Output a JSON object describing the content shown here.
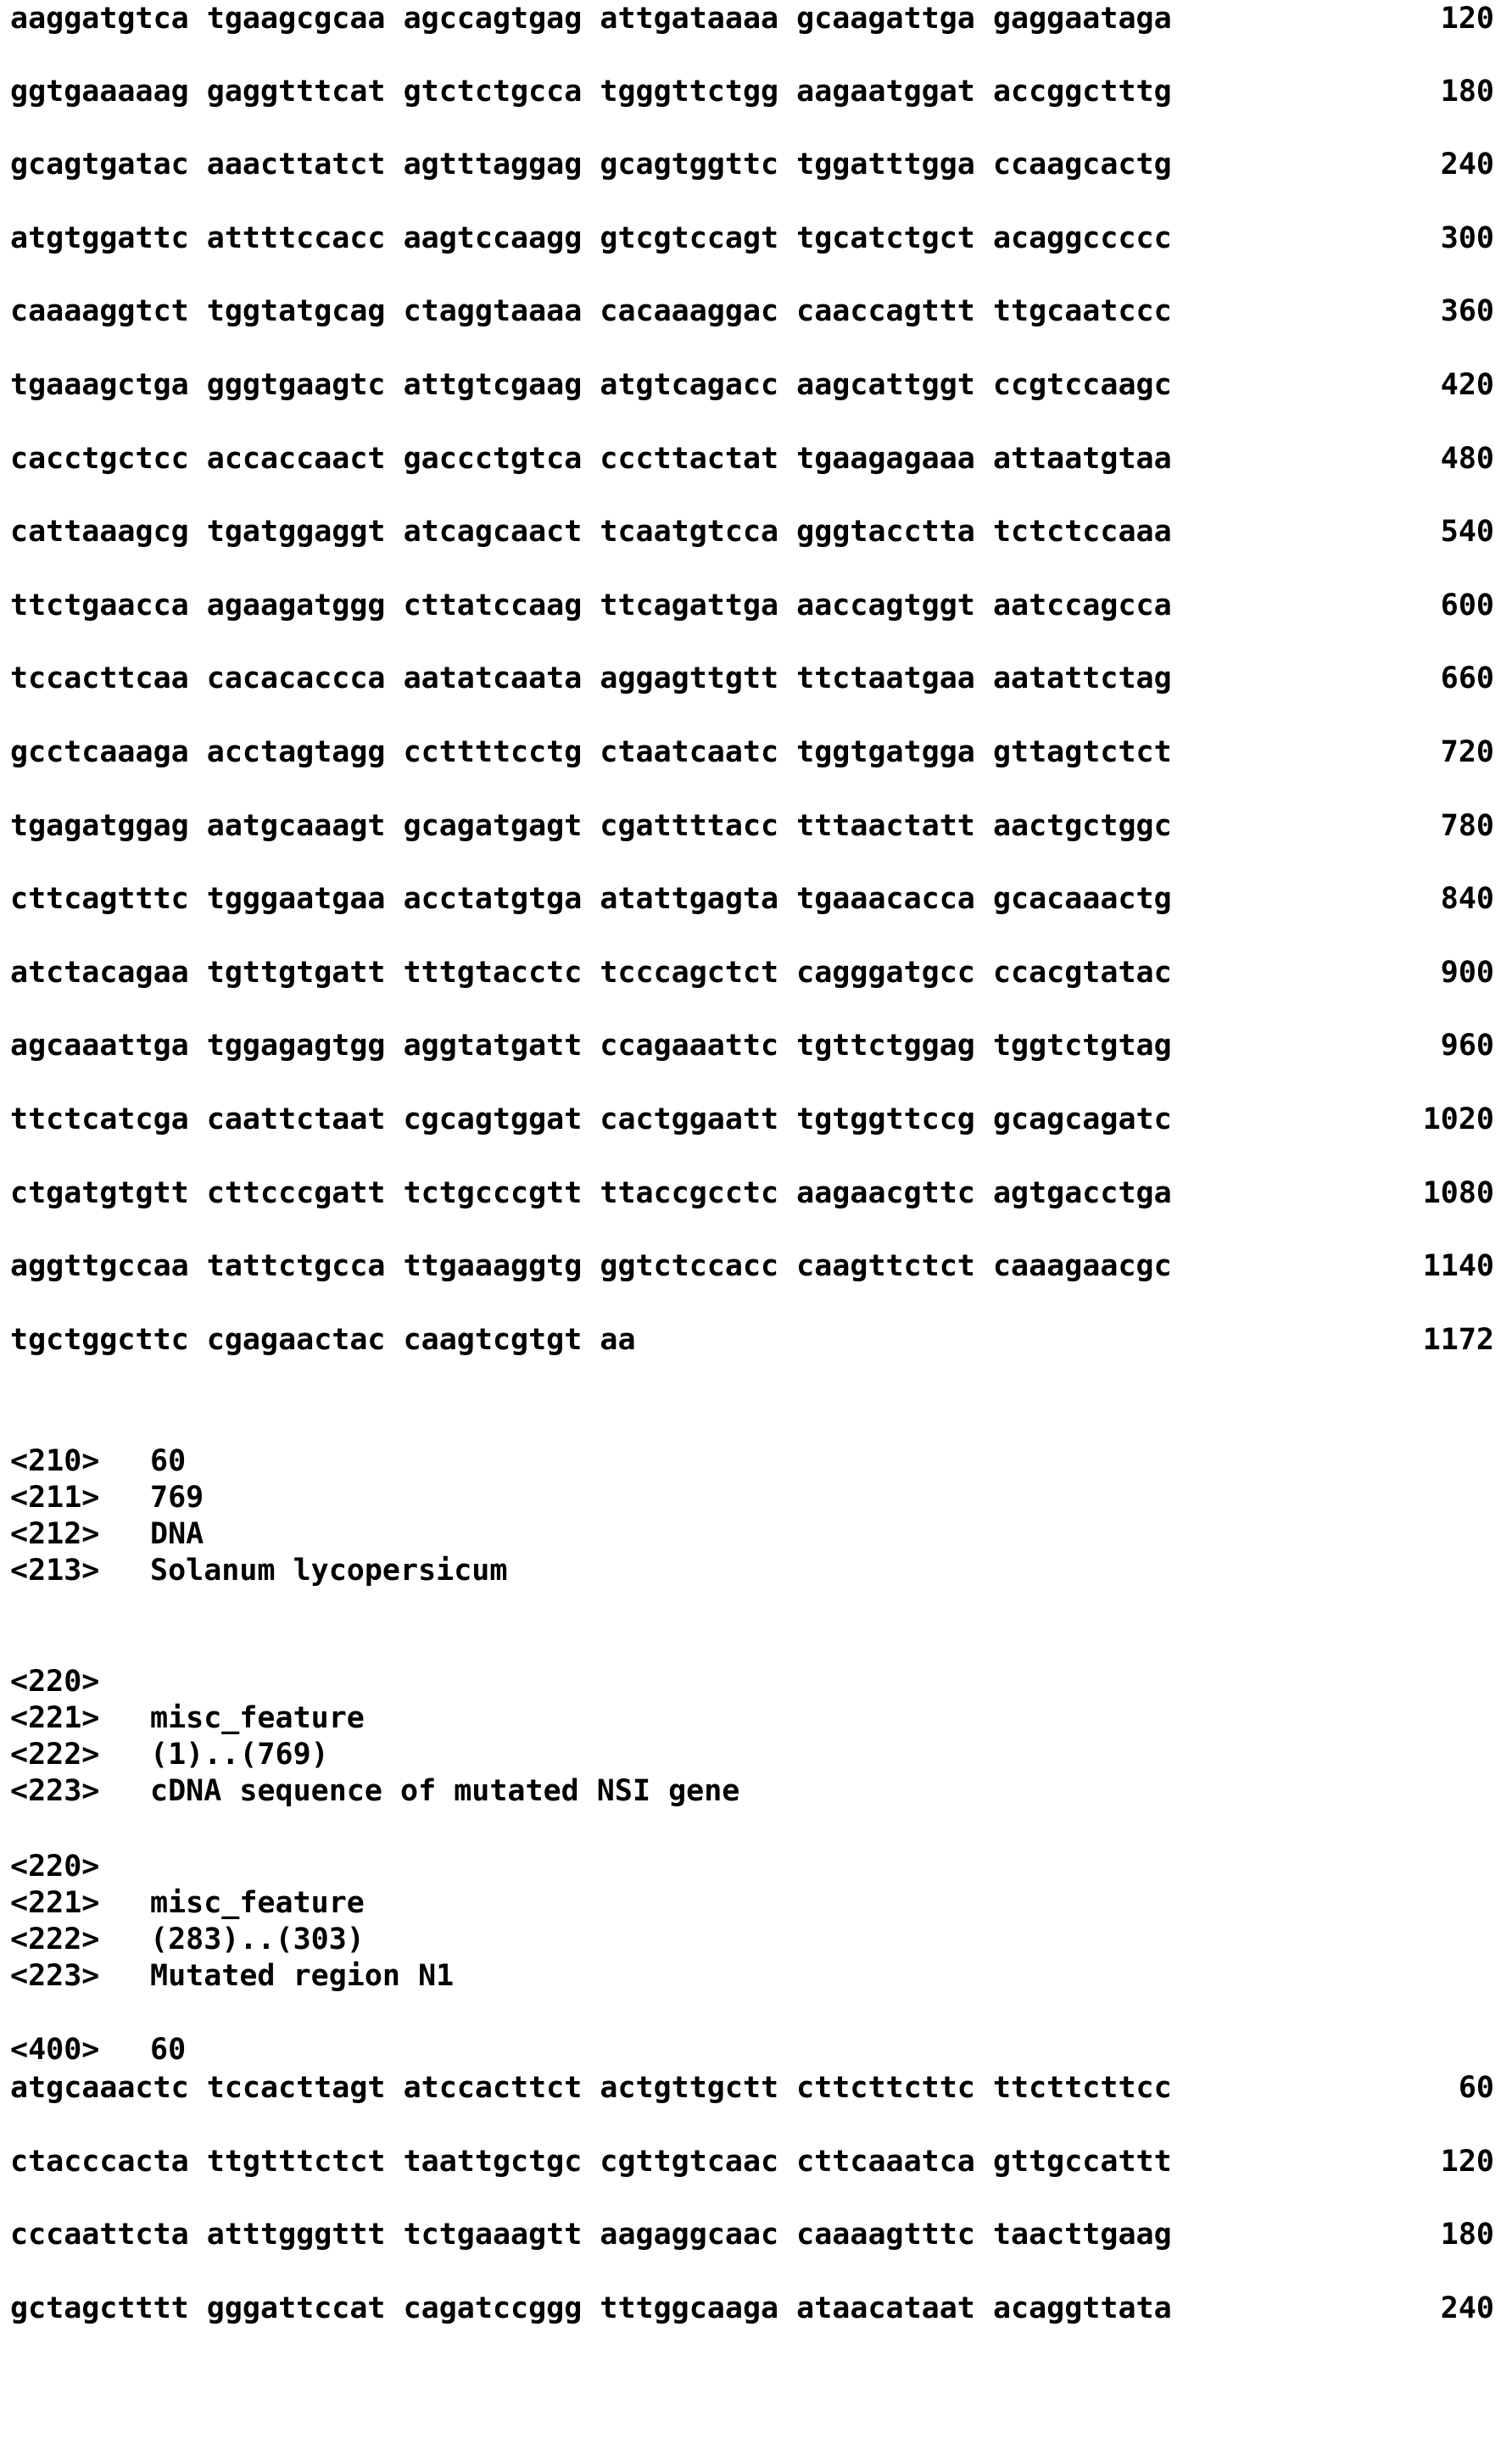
{
  "top_sequence": [
    {
      "seq": "aaggatgtca tgaagcgcaa agccagtgag attgataaaa gcaagattga gaggaataga",
      "num": "120"
    },
    {
      "seq": "ggtgaaaaag gaggtttcat gtctctgcca tgggttctgg aagaatggat accggctttg",
      "num": "180"
    },
    {
      "seq": "gcagtgatac aaacttatct agtttaggag gcagtggttc tggatttgga ccaagcactg",
      "num": "240"
    },
    {
      "seq": "atgtggattc attttccacc aagtccaagg gtcgtccagt tgcatctgct acaggccccc",
      "num": "300"
    },
    {
      "seq": "caaaaggtct tggtatgcag ctaggtaaaa cacaaaggac caaccagttt ttgcaatccc",
      "num": "360"
    },
    {
      "seq": "tgaaagctga gggtgaagtc attgtcgaag atgtcagacc aagcattggt ccgtccaagc",
      "num": "420"
    },
    {
      "seq": "cacctgctcc accaccaact gaccctgtca cccttactat tgaagagaaa attaatgtaa",
      "num": "480"
    },
    {
      "seq": "cattaaagcg tgatggaggt atcagcaact tcaatgtcca gggtacctta tctctccaaa",
      "num": "540"
    },
    {
      "seq": "ttctgaacca agaagatggg cttatccaag ttcagattga aaccagtggt aatccagcca",
      "num": "600"
    },
    {
      "seq": "tccacttcaa cacacaccca aatatcaata aggagttgtt ttctaatgaa aatattctag",
      "num": "660"
    },
    {
      "seq": "gcctcaaaga acctagtagg ccttttcctg ctaatcaatc tggtgatgga gttagtctct",
      "num": "720"
    },
    {
      "seq": "tgagatggag aatgcaaagt gcagatgagt cgattttacc tttaactatt aactgctggc",
      "num": "780"
    },
    {
      "seq": "cttcagtttc tgggaatgaa acctatgtga atattgagta tgaaacacca gcacaaactg",
      "num": "840"
    },
    {
      "seq": "atctacagaa tgttgtgatt tttgtacctc tcccagctct cagggatgcc ccacgtatac",
      "num": "900"
    },
    {
      "seq": "agcaaattga tggagagtgg aggtatgatt ccagaaattc tgttctggag tggtctgtag",
      "num": "960"
    },
    {
      "seq": "ttctcatcga caattctaat cgcagtggat cactggaatt tgtggttccg gcagcagatc",
      "num": "1020"
    },
    {
      "seq": "ctgatgtgtt cttcccgatt tctgcccgtt ttaccgcctc aagaacgttc agtgacctga",
      "num": "1080"
    },
    {
      "seq": "aggttgccaa tattctgcca ttgaaaggtg ggtctccacc caagttctct caaagaacgc",
      "num": "1140"
    },
    {
      "seq": "tgctggcttc cgagaactac caagtcgtgt aa",
      "num": "1172"
    }
  ],
  "metadata": [
    {
      "tag": "<210>",
      "value": "60"
    },
    {
      "tag": "<211>",
      "value": "769"
    },
    {
      "tag": "<212>",
      "value": "DNA"
    },
    {
      "tag": "<213>",
      "value": "Solanum lycopersicum"
    },
    {
      "tag": "<220>",
      "value": ""
    },
    {
      "tag": "<221>",
      "value": "misc_feature"
    },
    {
      "tag": "<222>",
      "value": "(1)..(769)"
    },
    {
      "tag": "<223>",
      "value": "cDNA sequence of mutated NSI gene"
    },
    {
      "tag": "<220>",
      "value": ""
    },
    {
      "tag": "<221>",
      "value": "misc_feature"
    },
    {
      "tag": "<222>",
      "value": "(283)..(303)"
    },
    {
      "tag": "<223>",
      "value": "Mutated region N1"
    },
    {
      "tag": "<400>",
      "value": "60"
    }
  ],
  "bottom_sequence": [
    {
      "seq": "atgcaaactc tccacttagt atccacttct actgttgctt cttcttcttc ttcttcttcc",
      "num": "60"
    },
    {
      "seq": "ctacccacta ttgtttctct taattgctgc cgttgtcaac cttcaaatca gttgccattt",
      "num": "120"
    },
    {
      "seq": "cccaattcta atttgggttt tctgaaagtt aagaggcaac caaaagtttc taacttgaag",
      "num": "180"
    },
    {
      "seq": "gctagctttt gggattccat cagatccggg tttggcaaga ataacataat acaggttata",
      "num": "240"
    }
  ]
}
